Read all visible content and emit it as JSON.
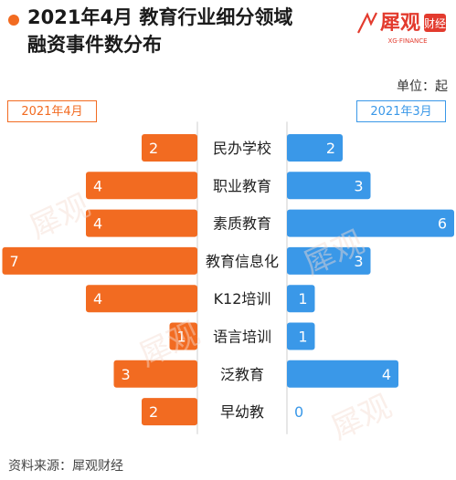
{
  "header": {
    "title_line1": "2021年4月 教育行业细分领域",
    "title_line2": "融资事件数分布",
    "unit": "单位：起",
    "source": "资料来源：犀观财经"
  },
  "logo": {
    "main_text": "犀观",
    "sub_text": "XG·FINANCE",
    "badge_text": "财经"
  },
  "watermark_text": "犀观",
  "colors": {
    "left": "#f26b21",
    "right": "#3a98e8",
    "center_box": "#ffffff",
    "divider": "#cfcfcf"
  },
  "chart_data": {
    "type": "bar",
    "orientation": "horizontal-butterfly",
    "categories": [
      "民办学校",
      "职业教育",
      "素质教育",
      "教育信息化",
      "K12培训",
      "语言培训",
      "泛教育",
      "早幼教"
    ],
    "series": [
      {
        "name": "2021年4月",
        "side": "left",
        "values": [
          2,
          4,
          4,
          7,
          4,
          1,
          3,
          2
        ]
      },
      {
        "name": "2021年3月",
        "side": "right",
        "values": [
          2,
          3,
          6,
          3,
          1,
          1,
          4,
          0
        ]
      }
    ]
  }
}
